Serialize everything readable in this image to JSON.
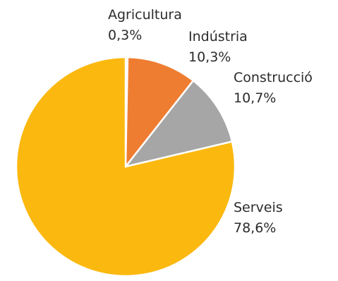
{
  "chart_data": {
    "type": "pie",
    "title": "",
    "slices": [
      {
        "label": "Agricultura",
        "value": 0.3,
        "value_label": "0,3%",
        "color": "#f2b705"
      },
      {
        "label": "Indústria",
        "value": 10.3,
        "value_label": "10,3%",
        "color": "#ee7d31"
      },
      {
        "label": "Construcció",
        "value": 10.7,
        "value_label": "10,7%",
        "color": "#a6a6a6"
      },
      {
        "label": "Serveis",
        "value": 78.6,
        "value_label": "78,6%",
        "color": "#fbb80f"
      }
    ],
    "start_angle": "12 o'clock",
    "direction": "clockwise",
    "slice_border_color": "#ffffff",
    "legend": "none (labels placed next to slices)"
  }
}
